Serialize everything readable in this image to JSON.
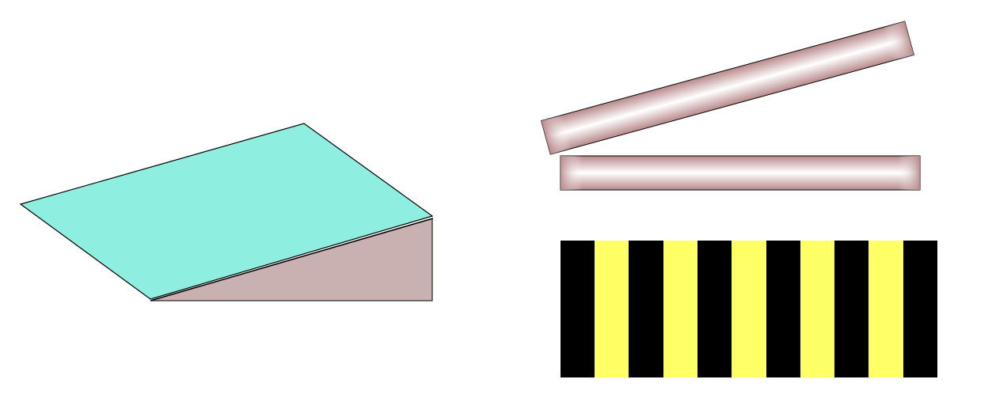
{
  "colors": {
    "background": "#ffffff",
    "wedge_side": "#c9b0b1",
    "top_plate": "#8eeee0",
    "outline": "#000000",
    "glass_dark": "#b8898b",
    "glass_light": "#ffffff",
    "fringe_dark": "#000000",
    "fringe_bright": "#ffff66"
  },
  "fringes": {
    "bright_band_count": 5
  }
}
